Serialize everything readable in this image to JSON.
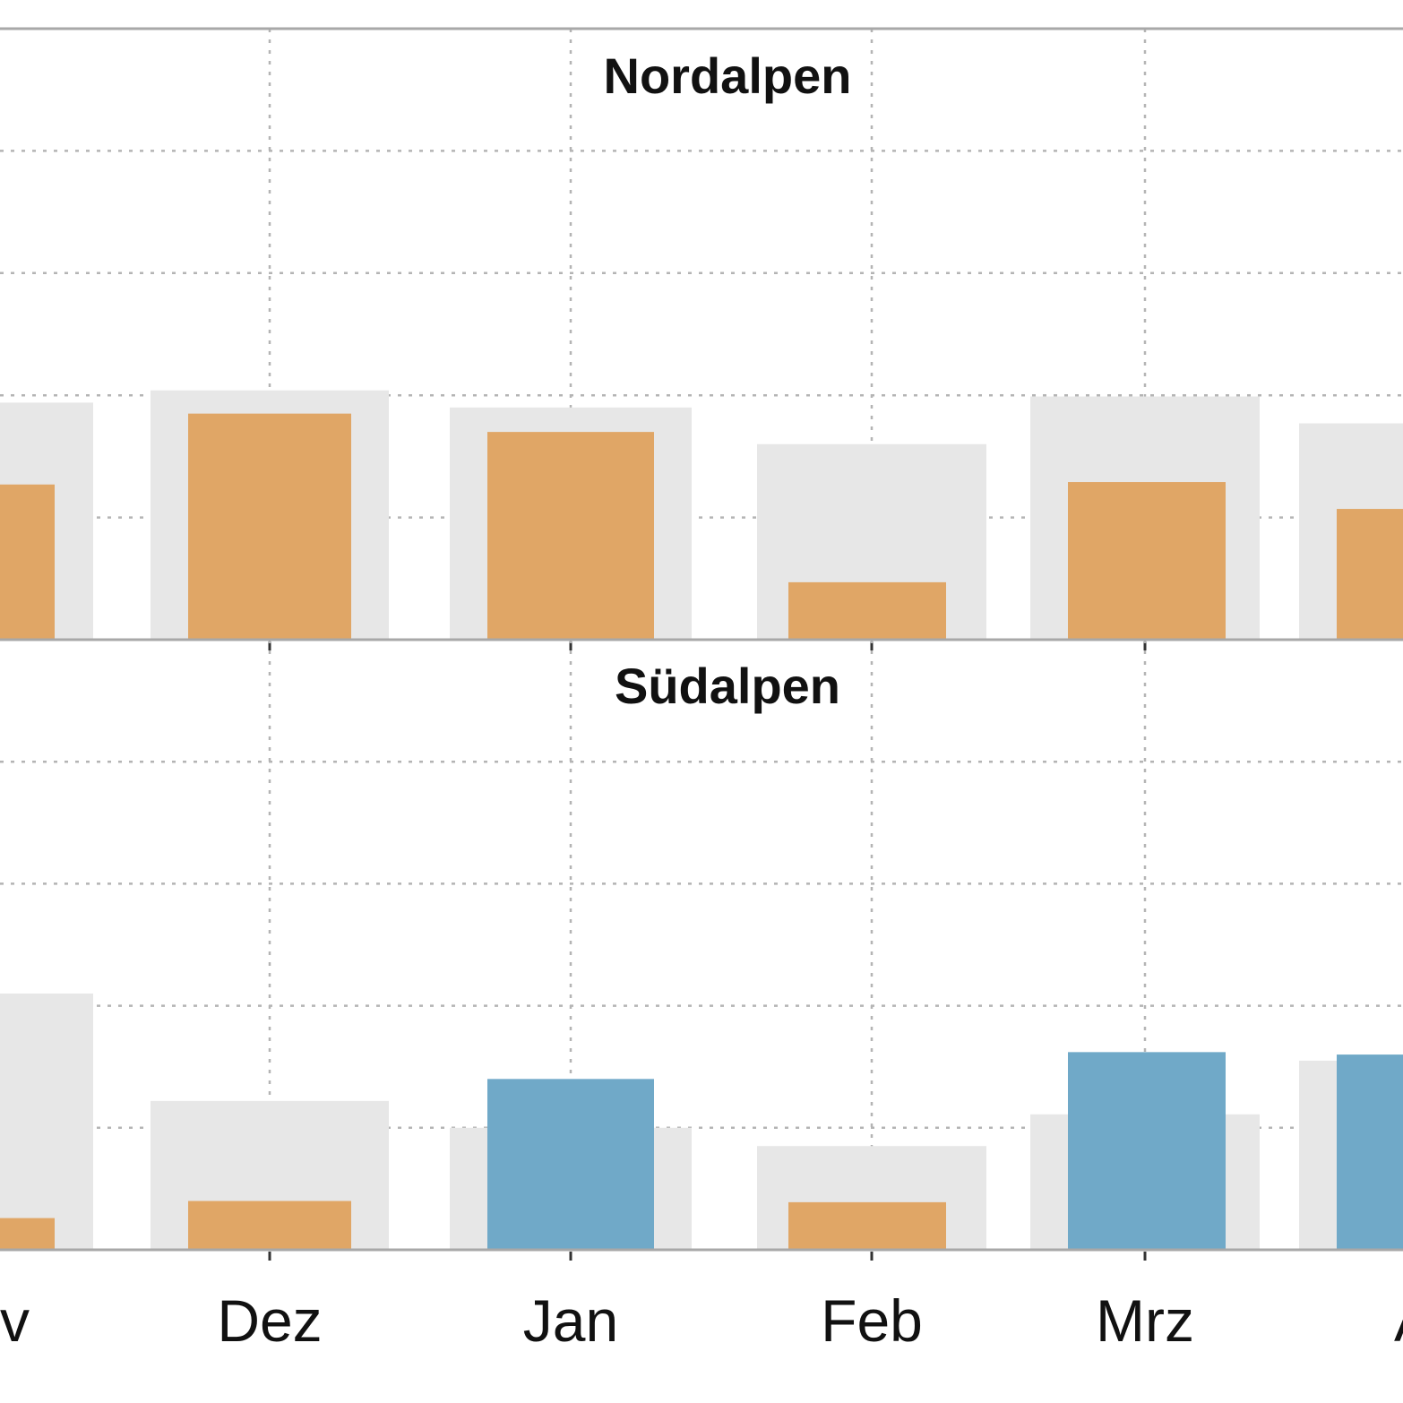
{
  "colors": {
    "reference": "#e7e7e7",
    "below": "#e0a666",
    "above": "#70a9c8",
    "grid": "#b4b4b4",
    "axis": "#a8a8a8"
  },
  "chart_data": {
    "type": "bar",
    "categories": [
      "Nov",
      "Dez",
      "Jan",
      "Feb",
      "Mrz",
      "Apr"
    ],
    "x_tick_labels": [
      "v",
      "Dez",
      "Jan",
      "Feb",
      "Mrz",
      "A"
    ],
    "grid": true,
    "panels": [
      {
        "title": "Nordalpen",
        "ylim": [
          0,
          5
        ],
        "series": [
          {
            "role": "reference",
            "values": [
              1.94,
              2.04,
              1.9,
              1.6,
              1.99,
              1.77
            ]
          },
          {
            "role": "observed",
            "values": [
              1.27,
              1.85,
              1.7,
              0.47,
              1.29,
              1.07
            ],
            "colors": [
              "below",
              "below",
              "below",
              "below",
              "below",
              "below"
            ]
          }
        ]
      },
      {
        "title": "Südalpen",
        "ylim": [
          0,
          5
        ],
        "series": [
          {
            "role": "reference",
            "values": [
              2.1,
              1.22,
              1.0,
              0.85,
              1.11,
              1.55
            ]
          },
          {
            "role": "observed",
            "values": [
              0.26,
              0.4,
              1.4,
              0.39,
              1.62,
              1.6
            ],
            "colors": [
              "below",
              "below",
              "above",
              "below",
              "above",
              "above"
            ]
          }
        ]
      }
    ]
  }
}
